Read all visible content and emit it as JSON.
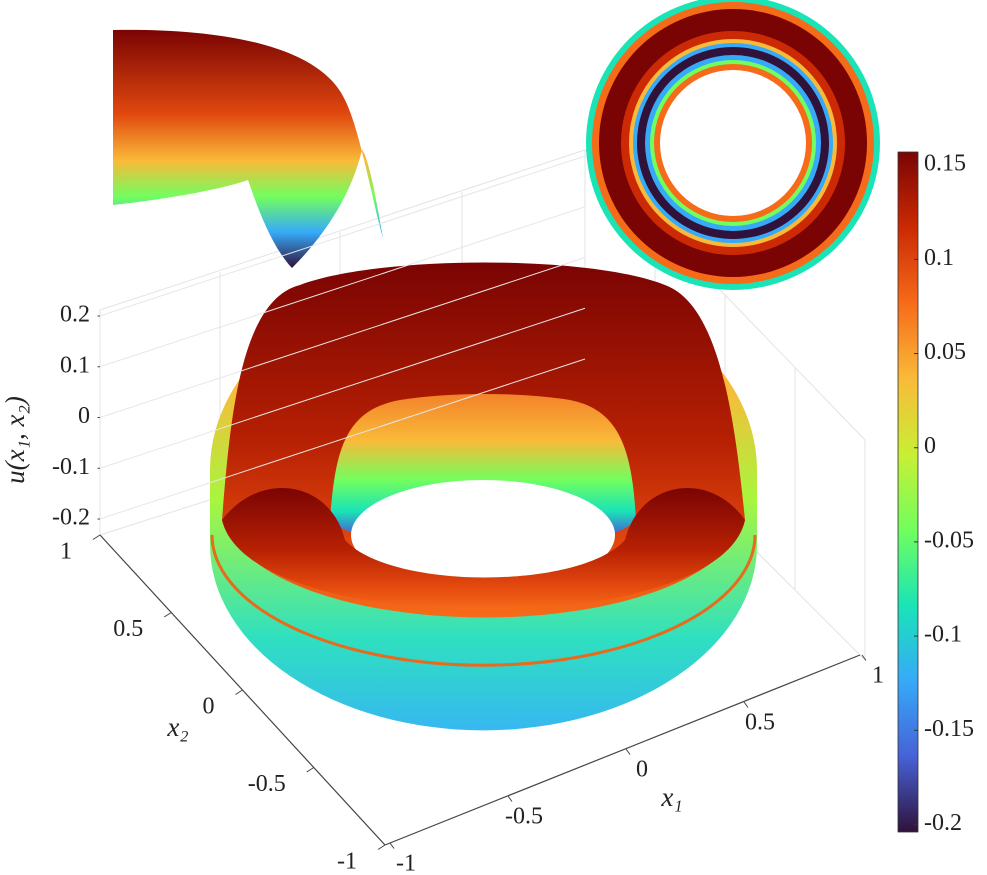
{
  "chart_data": {
    "type": "surface",
    "xlabel": "x₁",
    "ylabel": "x₂",
    "zlabel": "u(x₁, x₂)",
    "xlim": [
      -1,
      1
    ],
    "xticks": [
      -1,
      -0.5,
      0,
      0.5,
      1
    ],
    "ylim": [
      -1,
      1
    ],
    "yticks": [
      -1,
      -0.5,
      0,
      0.5,
      1
    ],
    "zlim": [
      -0.2,
      0.2
    ],
    "zticks": [
      -0.2,
      -0.1,
      0,
      0.1,
      0.2
    ],
    "clim": [
      -0.204,
      0.157
    ],
    "cticks": [
      -0.2,
      -0.15,
      -0.1,
      -0.05,
      0,
      0.05,
      0.1,
      0.15
    ],
    "colormap": [
      "#30123b",
      "#4662d7",
      "#36aaf9",
      "#1ae4b6",
      "#72fe5e",
      "#c8ef34",
      "#faba39",
      "#f66b19",
      "#cb2a04",
      "#7a0403"
    ],
    "grid": true
  }
}
